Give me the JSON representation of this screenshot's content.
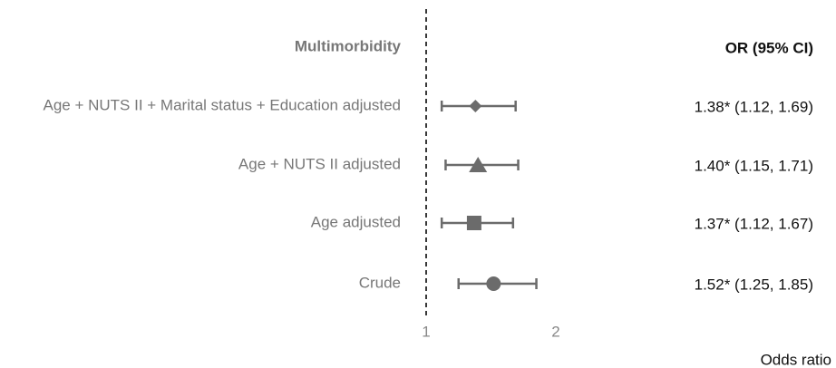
{
  "chart_data": {
    "type": "forest",
    "row_header": "Multimorbidity",
    "label_header": "OR (95% CI)",
    "x_label": "Odds ratio",
    "categories": [
      "Age + NUTS II + Marital status + Education adjusted",
      "Age + NUTS II adjusted",
      "Age adjusted",
      "Crude"
    ],
    "values": [
      1.38,
      1.4,
      1.37,
      1.52
    ],
    "lower": [
      1.12,
      1.15,
      1.12,
      1.25
    ],
    "upper": [
      1.69,
      1.71,
      1.67,
      1.85
    ],
    "value_labels": [
      "1.38* (1.12, 1.69)",
      "1.40* (1.15, 1.71)",
      "1.37* (1.12, 1.67)",
      "1.52* (1.25, 1.85)"
    ],
    "markers": [
      "diamond",
      "triangle",
      "square",
      "circle"
    ],
    "color": "#6b6b6b",
    "reference_line": 1,
    "xlim": [
      1,
      2
    ],
    "xticks": [
      1,
      2
    ]
  }
}
